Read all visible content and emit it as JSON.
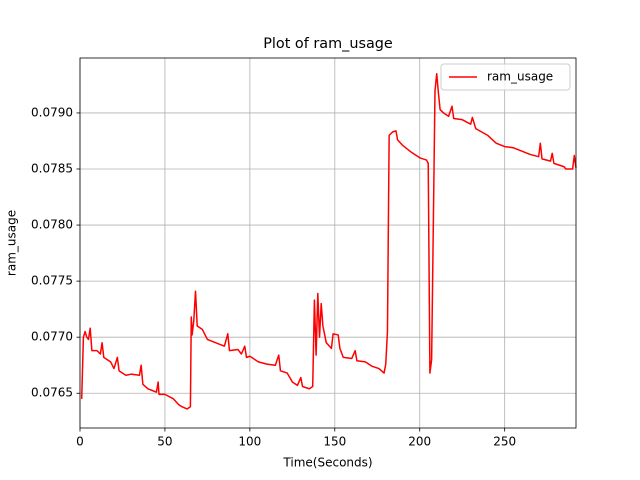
{
  "chart_data": {
    "type": "line",
    "title": "Plot of ram_usage",
    "xlabel": "Time(Seconds)",
    "ylabel": "ram_usage",
    "x": [
      1,
      2,
      3,
      4,
      5,
      6,
      7,
      10,
      12,
      13,
      14,
      18,
      20,
      22,
      23,
      27,
      30,
      35,
      36,
      37,
      40,
      45,
      46,
      46.5,
      50,
      55,
      58,
      60,
      63,
      65,
      65.5,
      66,
      67,
      68,
      69,
      72,
      75,
      80,
      85,
      87,
      88,
      93,
      95,
      97,
      98,
      100,
      105,
      110,
      115,
      117,
      118,
      122,
      125,
      128,
      130,
      131,
      135,
      137,
      138,
      139,
      140,
      141,
      142,
      143,
      145,
      148,
      149,
      152,
      153,
      155,
      160,
      162,
      163,
      168,
      172,
      176,
      179,
      180,
      181,
      182,
      184,
      186,
      187,
      190,
      195,
      200,
      204,
      205,
      206,
      207,
      208,
      209,
      210,
      211,
      212,
      214,
      217,
      219,
      220,
      225,
      230,
      231,
      233,
      240,
      245,
      250,
      255,
      260,
      265,
      270,
      271,
      272,
      277,
      278,
      279,
      283,
      285,
      286,
      290,
      291,
      292
    ],
    "series": [
      {
        "name": "ram_usage",
        "color": "#ff0000",
        "values": [
          0.07645,
          0.077,
          0.07705,
          0.077,
          0.07698,
          0.07708,
          0.07688,
          0.07688,
          0.07685,
          0.07695,
          0.07682,
          0.07678,
          0.07672,
          0.07682,
          0.0767,
          0.07666,
          0.07667,
          0.07666,
          0.07675,
          0.07658,
          0.07654,
          0.07651,
          0.0766,
          0.07649,
          0.07649,
          0.07645,
          0.0764,
          0.07638,
          0.07636,
          0.07638,
          0.07718,
          0.07702,
          0.07715,
          0.07741,
          0.0771,
          0.07707,
          0.07698,
          0.07695,
          0.07692,
          0.07703,
          0.07688,
          0.07689,
          0.07685,
          0.07692,
          0.07682,
          0.07683,
          0.07678,
          0.07676,
          0.07675,
          0.07684,
          0.0767,
          0.07668,
          0.0766,
          0.07657,
          0.07664,
          0.07656,
          0.07654,
          0.07656,
          0.07733,
          0.07684,
          0.07739,
          0.077,
          0.0773,
          0.0771,
          0.07695,
          0.0769,
          0.07703,
          0.07702,
          0.0769,
          0.07682,
          0.07681,
          0.07688,
          0.07679,
          0.07678,
          0.07674,
          0.07672,
          0.07668,
          0.07676,
          0.07705,
          0.0788,
          0.07883,
          0.07884,
          0.07876,
          0.07871,
          0.07865,
          0.0786,
          0.07858,
          0.07855,
          0.07668,
          0.0768,
          0.078,
          0.0792,
          0.07935,
          0.07918,
          0.07903,
          0.079,
          0.07897,
          0.07906,
          0.07895,
          0.07894,
          0.0789,
          0.07896,
          0.07886,
          0.0788,
          0.07873,
          0.0787,
          0.07869,
          0.07866,
          0.07863,
          0.07861,
          0.07873,
          0.07859,
          0.07857,
          0.07864,
          0.07855,
          0.07853,
          0.07852,
          0.0785,
          0.0785,
          0.07862,
          0.07851
        ]
      }
    ],
    "xlim": [
      0,
      292
    ],
    "ylim": [
      0.07619,
      0.07949
    ],
    "xticks": [
      0,
      50,
      100,
      150,
      200,
      250
    ],
    "yticks": [
      0.0765,
      {
        "value": 0.077,
        "label": "0.0770"
      },
      0.0775,
      {
        "value": 0.078,
        "label": "0.0780"
      },
      0.0785,
      {
        "value": 0.079,
        "label": "0.0790"
      }
    ],
    "grid": true,
    "legend": "upper right"
  }
}
